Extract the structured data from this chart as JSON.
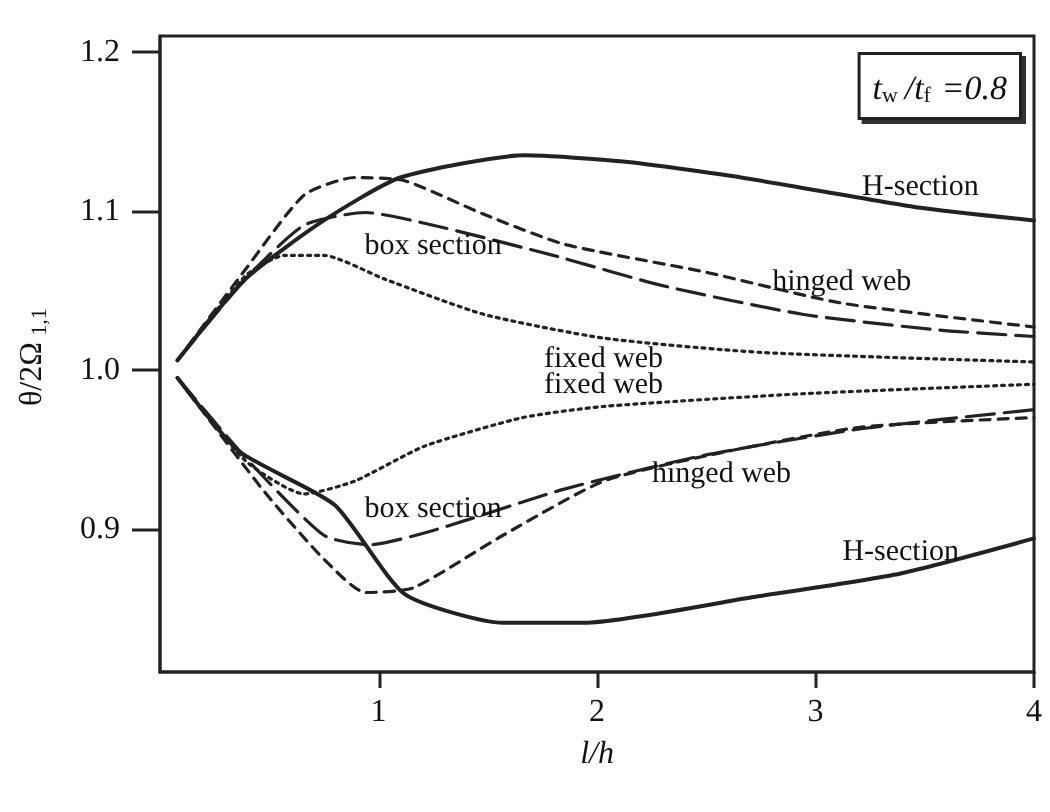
{
  "chart_data": {
    "type": "line",
    "xlabel": "l/h",
    "ylabel": "θ/2Ω$_{1,1}$",
    "annotations": [
      "t$_{w}$/t$_{f}$ =0.8"
    ],
    "xlim": [
      0,
      4
    ],
    "xticks": [
      1,
      2,
      3,
      4
    ],
    "ylim": [
      0.81,
      1.21
    ],
    "yticks": [
      0.9,
      {
        "value": 1.0,
        "label": "1.0"
      },
      1.1,
      1.2
    ],
    "grid": false,
    "legend": false,
    "marker": "none",
    "series": [
      {
        "name": "H-section",
        "color": "#222222",
        "line_style": "solid",
        "x": [
          0.08,
          0.39,
          0.75,
          1.1,
          1.67,
          2.12,
          2.66,
          3.48,
          4
        ],
        "values": [
          1.006,
          1.057,
          1.094,
          1.121,
          1.135,
          1.131,
          1.121,
          1.102,
          1.094
        ]
      },
      {
        "name": "box section",
        "color": "#222222",
        "line_style": "dashed",
        "x": [
          0.08,
          0.39,
          0.66,
          0.94,
          1.25,
          1.8,
          2.3,
          2.94,
          3.57,
          4
        ],
        "values": [
          1.006,
          1.057,
          1.091,
          1.099,
          1.091,
          1.072,
          1.053,
          1.035,
          1.025,
          1.021
        ]
      },
      {
        "name": "hinged web",
        "color": "#222222",
        "line_style": "dashed",
        "x": [
          0.08,
          0.39,
          0.66,
          0.89,
          1.12,
          1.48,
          1.85,
          2.48,
          3.12,
          4
        ],
        "values": [
          1.006,
          1.063,
          1.11,
          1.121,
          1.119,
          1.098,
          1.079,
          1.062,
          1.042,
          1.027
        ]
      },
      {
        "name": "fixed web",
        "color": "#222222",
        "line_style": "dotted",
        "x": [
          0.08,
          0.39,
          0.57,
          0.75,
          1.03,
          1.48,
          2.03,
          2.75,
          4
        ],
        "values": [
          1.006,
          1.059,
          1.072,
          1.072,
          1.057,
          1.035,
          1.02,
          1.011,
          1.005
        ]
      },
      {
        "name": "H-section",
        "color": "#222222",
        "line_style": "solid",
        "x": [
          0.08,
          0.36,
          0.8,
          1.12,
          1.57,
          1.94,
          2.71,
          3.39,
          4
        ],
        "values": [
          0.995,
          0.949,
          0.915,
          0.859,
          0.841,
          0.841,
          0.857,
          0.872,
          0.894
        ]
      },
      {
        "name": "box section",
        "color": "#222222",
        "line_style": "dashed",
        "x": [
          0.08,
          0.39,
          0.75,
          0.96,
          1.25,
          1.85,
          2.48,
          3.21,
          4
        ],
        "values": [
          0.995,
          0.945,
          0.896,
          0.89,
          0.899,
          0.925,
          0.946,
          0.963,
          0.975
        ]
      },
      {
        "name": "hinged web",
        "color": "#222222",
        "line_style": "dashed",
        "x": [
          0.08,
          0.48,
          0.75,
          0.94,
          1.16,
          1.57,
          2.03,
          2.57,
          3.21,
          4
        ],
        "values": [
          0.995,
          0.923,
          0.881,
          0.86,
          0.863,
          0.896,
          0.93,
          0.948,
          0.964,
          0.97
        ]
      },
      {
        "name": "fixed web",
        "color": "#222222",
        "line_style": "dotted",
        "x": [
          0.08,
          0.39,
          0.66,
          0.89,
          1.21,
          1.66,
          2.03,
          2.94,
          4
        ],
        "values": [
          0.995,
          0.943,
          0.922,
          0.93,
          0.952,
          0.97,
          0.977,
          0.985,
          0.991
        ]
      }
    ]
  }
}
